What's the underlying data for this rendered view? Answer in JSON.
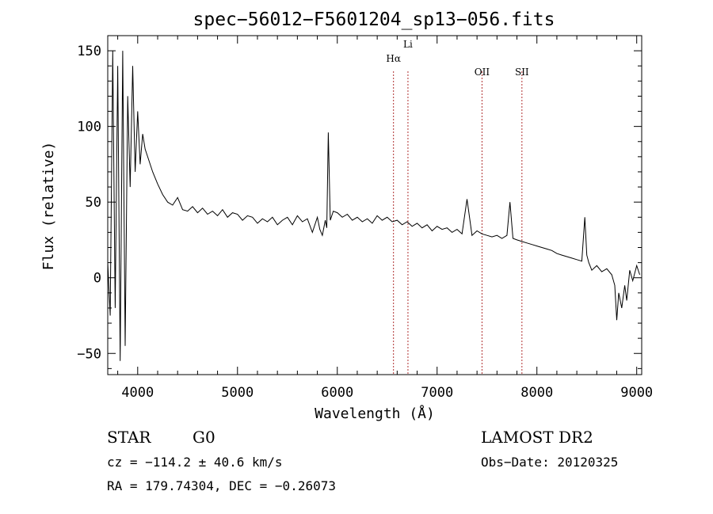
{
  "chart_data": {
    "type": "line",
    "title": "spec−56012−F5601204_sp13−056.fits",
    "xlabel": "Wavelength (Å)",
    "ylabel": "Flux (relative)",
    "xlim": [
      3700,
      9050
    ],
    "ylim": [
      -64,
      160
    ],
    "x_ticks": [
      4000,
      5000,
      6000,
      7000,
      8000,
      9000
    ],
    "y_ticks": [
      -50,
      0,
      50,
      100,
      150
    ],
    "x_tick_labels": [
      "4000",
      "5000",
      "6000",
      "7000",
      "8000",
      "9000"
    ],
    "y_tick_labels": [
      "−50",
      "0",
      "50",
      "100",
      "150"
    ],
    "grid": false,
    "series": [
      {
        "x": [
          3700,
          3725,
          3750,
          3775,
          3800,
          3825,
          3850,
          3875,
          3900,
          3925,
          3950,
          3975,
          4000,
          4025,
          4050,
          4075,
          4100,
          4150,
          4200,
          4250,
          4300,
          4350,
          4400,
          4450,
          4500,
          4550,
          4600,
          4650,
          4700,
          4750,
          4800,
          4850,
          4900,
          4950,
          5000,
          5050,
          5100,
          5150,
          5200,
          5250,
          5300,
          5350,
          5400,
          5450,
          5500,
          5550,
          5600,
          5650,
          5700,
          5750,
          5800,
          5825,
          5850,
          5880,
          5895,
          5910,
          5930,
          5960,
          6000,
          6050,
          6100,
          6150,
          6200,
          6250,
          6300,
          6350,
          6400,
          6450,
          6500,
          6550,
          6600,
          6650,
          6700,
          6750,
          6800,
          6850,
          6900,
          6950,
          7000,
          7050,
          7100,
          7150,
          7200,
          7250,
          7300,
          7350,
          7400,
          7450,
          7500,
          7550,
          7600,
          7650,
          7700,
          7730,
          7760,
          7800,
          7850,
          7900,
          7950,
          8000,
          8050,
          8100,
          8150,
          8200,
          8250,
          8300,
          8350,
          8400,
          8450,
          8480,
          8500,
          8520,
          8550,
          8600,
          8650,
          8700,
          8750,
          8780,
          8800,
          8820,
          8850,
          8880,
          8900,
          8930,
          8960,
          9000,
          9030
        ],
        "y": [
          10,
          -25,
          150,
          -20,
          140,
          -55,
          150,
          -45,
          120,
          60,
          140,
          70,
          110,
          75,
          95,
          85,
          80,
          70,
          62,
          55,
          50,
          48,
          53,
          45,
          44,
          47,
          43,
          46,
          42,
          44,
          41,
          45,
          40,
          43,
          42,
          38,
          41,
          40,
          36,
          39,
          37,
          40,
          35,
          38,
          40,
          35,
          41,
          37,
          39,
          30,
          40,
          32,
          28,
          38,
          33,
          96,
          38,
          44,
          43,
          40,
          42,
          38,
          40,
          37,
          39,
          36,
          41,
          38,
          40,
          37,
          38,
          35,
          37,
          34,
          36,
          33,
          35,
          31,
          34,
          32,
          33,
          30,
          32,
          29,
          52,
          28,
          31,
          29,
          28,
          27,
          28,
          26,
          28,
          50,
          26,
          25,
          24,
          23,
          22,
          21,
          20,
          19,
          18,
          16,
          15,
          14,
          13,
          12,
          11,
          40,
          15,
          10,
          5,
          8,
          4,
          6,
          2,
          -5,
          -28,
          -10,
          -20,
          -5,
          -15,
          5,
          -2,
          8,
          2
        ]
      }
    ],
    "lines": [
      {
        "label": "Hα",
        "x": 6563
      },
      {
        "label": "Li",
        "x": 6708
      },
      {
        "label": "OII",
        "x": 7450
      },
      {
        "label": "SII",
        "x": 7850
      }
    ]
  },
  "footer": {
    "class": "STAR",
    "subclass": "G0",
    "survey": "LAMOST DR2",
    "cz": "cz = −114.2 ± 40.6 km/s",
    "obs_date": "Obs−Date: 20120325",
    "radec": "RA = 179.74304, DEC =  −0.26073"
  }
}
